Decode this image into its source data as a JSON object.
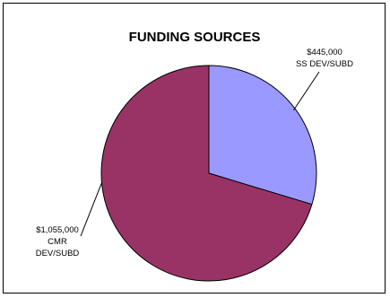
{
  "chart_data": {
    "type": "pie",
    "title": "FUNDING SOURCES",
    "slices": [
      {
        "label_value": "$445,000",
        "label_name": "SS DEV/SUBD",
        "value": 445000,
        "color": "#9999ff"
      },
      {
        "label_value": "$1,055,000",
        "label_name_lines": [
          "CMR",
          "DEV/SUBD"
        ],
        "value": 1055000,
        "color": "#993366"
      }
    ],
    "legend": "none",
    "border": true
  }
}
